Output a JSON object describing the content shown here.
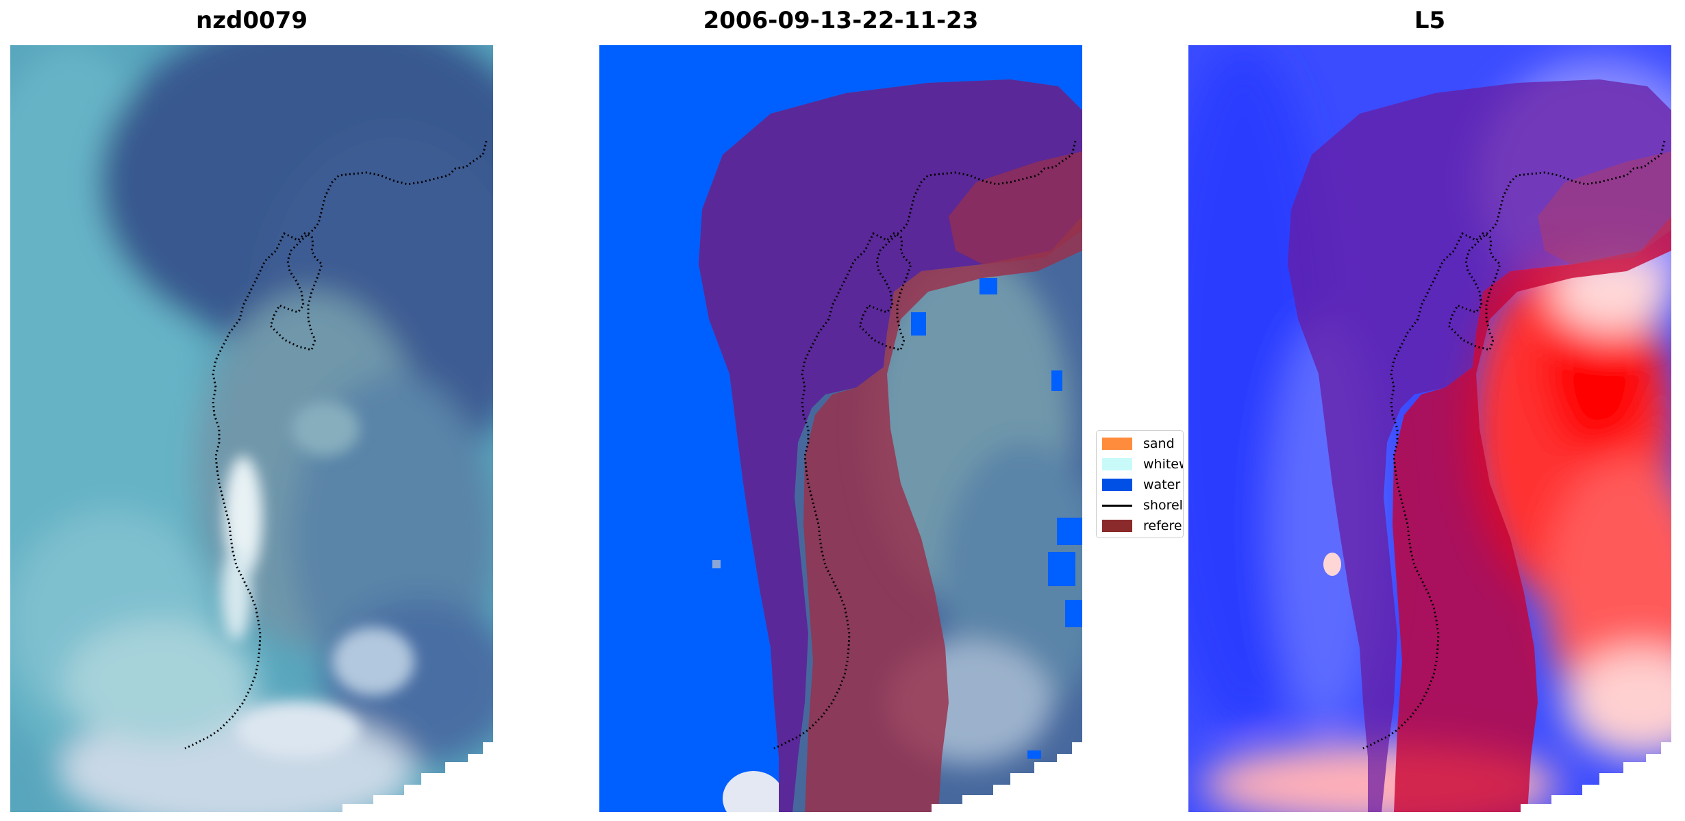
{
  "panels": [
    {
      "title": "nzd0079"
    },
    {
      "title": "2006-09-13-22-11-23"
    },
    {
      "title": "L5"
    }
  ],
  "legend": {
    "items": [
      {
        "label": "sand",
        "color": "#ff8c3c"
      },
      {
        "label": "whitewater",
        "color": "#c8fafa"
      },
      {
        "label": "water",
        "color": "#0050e6"
      },
      {
        "label": "shoreline",
        "color": "#000000"
      },
      {
        "label": "reference",
        "color": "#8b2a2a"
      }
    ]
  },
  "colors": {
    "water_mask": "#005fff",
    "buffer_zone": "#5a2898",
    "reference_sand": "#9a2f4a",
    "index_negative": "#1f3dff",
    "index_positive": "#ff1010"
  }
}
